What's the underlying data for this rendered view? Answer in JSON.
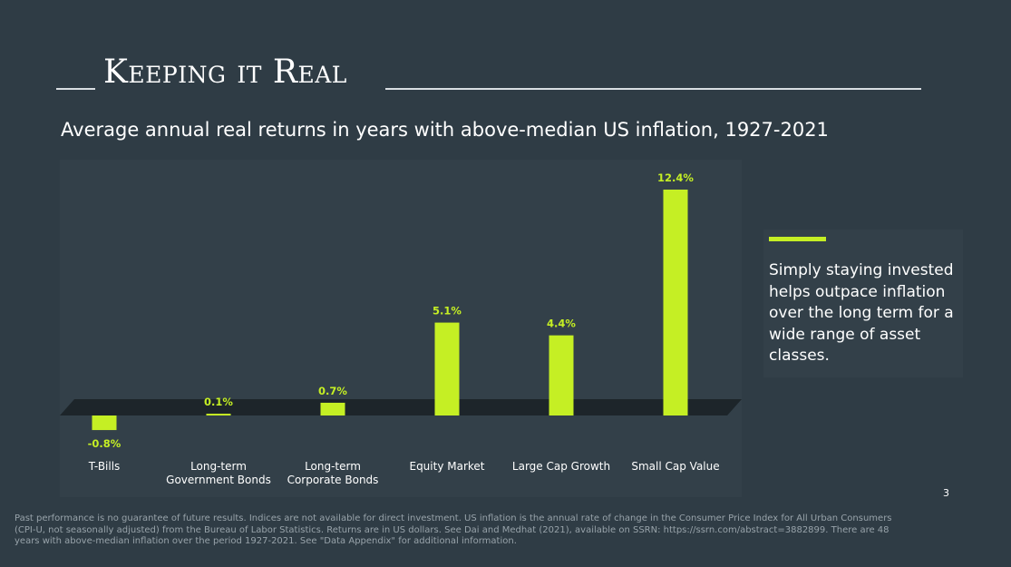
{
  "header": {
    "title": "Keeping it Real",
    "subtitle": "Average annual real returns in years with above-median US inflation, 1927-2021"
  },
  "chart_data": {
    "type": "bar",
    "categories": [
      [
        "T-Bills"
      ],
      [
        "Long-term",
        "Government Bonds"
      ],
      [
        "Long-term",
        "Corporate Bonds"
      ],
      [
        "Equity Market"
      ],
      [
        "Large Cap Growth"
      ],
      [
        "Small Cap Value"
      ]
    ],
    "values": [
      -0.8,
      0.1,
      0.7,
      5.1,
      4.4,
      12.4
    ],
    "data_labels": [
      "-0.8%",
      "0.1%",
      "0.7%",
      "5.1%",
      "4.4%",
      "12.4%"
    ],
    "ylim": [
      -0.8,
      12.4
    ],
    "grid": false,
    "legend": "none",
    "bar_color": "#c5ef24",
    "baseline_color": "#1d252a"
  },
  "callout": {
    "text": "Simply staying invested helps outpace inflation over the long term for a wide range of asset classes.",
    "accent_color": "#c5ef24"
  },
  "page_number": "3",
  "footnote": "Past performance is no guarantee of future results. Indices are not available for direct investment. US inflation is the annual rate of change in the Consumer Price Index for All Urban Consumers (CPI-U, not seasonally adjusted) from the Bureau of Labor Statistics. Returns are in US dollars. See Dai and Medhat (2021), available on SSRN: https://ssrn.com/abstract=3882899. There are 48 years with above-median inflation over the period 1927-2021. See \"Data Appendix\" for additional information."
}
